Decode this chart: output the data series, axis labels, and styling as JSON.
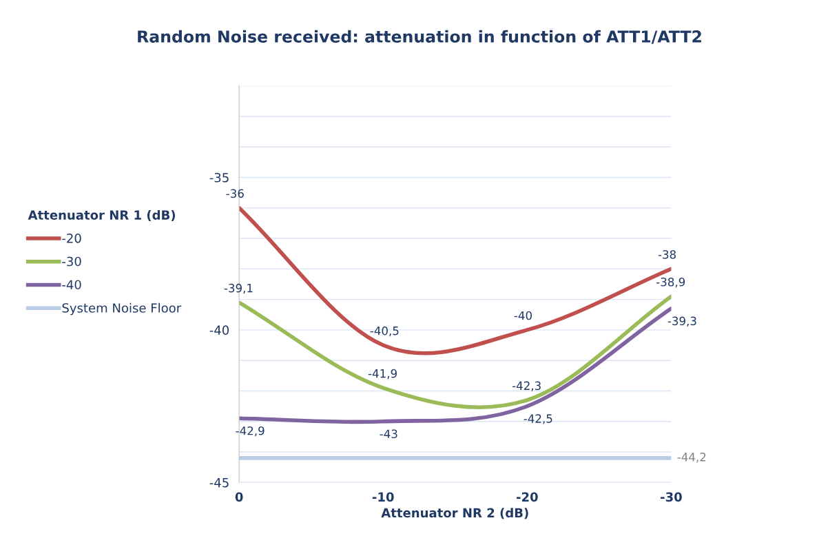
{
  "chart_data": {
    "type": "line",
    "title": "Random Noise received: attenuation in function of ATT1/ATT2",
    "xlabel": "Attenuator NR 2 (dB)",
    "legend_title": "Attenuator NR 1 (dB)",
    "x": [
      0,
      -10,
      -20,
      -30
    ],
    "xlim": [
      0,
      -30
    ],
    "xticks": [
      0,
      -10,
      -20,
      -30
    ],
    "ylim": [
      -45,
      -32
    ],
    "yticks": [
      -45,
      {
        "value": -44,
        "label": null
      },
      {
        "value": -43,
        "label": null
      },
      {
        "value": -42,
        "label": null
      },
      {
        "value": -41,
        "label": null
      },
      -40,
      {
        "value": -39,
        "label": null
      },
      {
        "value": -38,
        "label": null
      },
      {
        "value": -37,
        "label": null
      },
      {
        "value": -36,
        "label": null
      },
      -35,
      {
        "value": -34,
        "label": null
      },
      {
        "value": -33,
        "label": null
      },
      {
        "value": -32,
        "label": null
      }
    ],
    "grid": "y",
    "legend": "left",
    "marker": "none",
    "line_style": "solid",
    "series": [
      {
        "name": "-20",
        "color": "#c0504d",
        "values": [
          -36,
          -40.5,
          -40,
          -38
        ],
        "value_labels": [
          "-36",
          "-40,5",
          "-40",
          "-38"
        ]
      },
      {
        "name": "-30",
        "color": "#9bbb59",
        "values": [
          -39.1,
          -41.9,
          -42.3,
          -38.9
        ],
        "value_labels": [
          "-39,1",
          "-41,9",
          "-42,3",
          "-38,9"
        ]
      },
      {
        "name": "-40",
        "color": "#8064a2",
        "values": [
          -42.9,
          -43,
          -42.5,
          -39.3
        ],
        "value_labels": [
          "-42,9",
          "-43",
          "-42,5",
          "-39,3"
        ]
      },
      {
        "name": "System Noise Floor",
        "color": "#b9cde5",
        "values": [
          -44.2,
          -44.2,
          -44.2,
          -44.2
        ],
        "value_labels": [
          null,
          null,
          null,
          "-44,2"
        ]
      }
    ]
  }
}
